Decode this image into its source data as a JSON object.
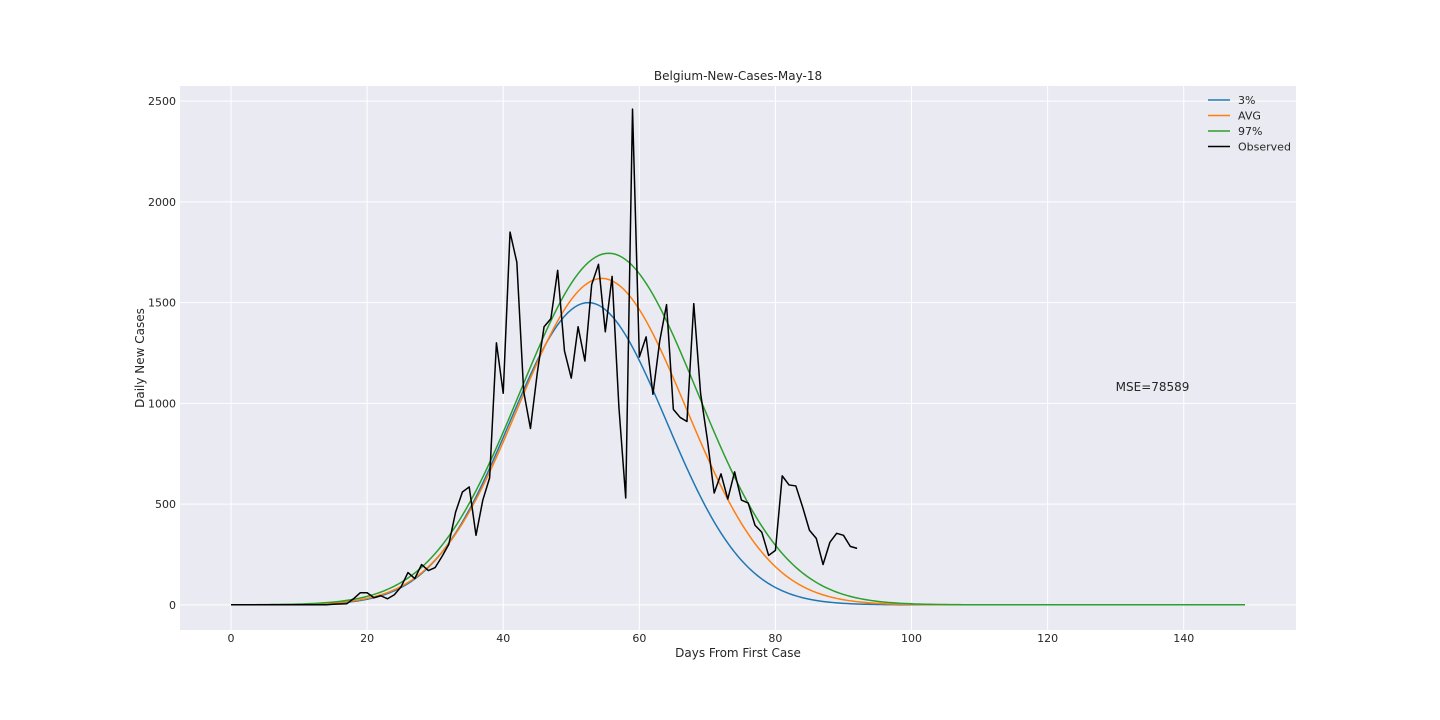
{
  "chart_data": {
    "type": "line",
    "title": "Belgium-New-Cases-May-18",
    "xlabel": "Days From First Case",
    "ylabel": "Daily New Cases",
    "xlim": [
      -7.5,
      156.5
    ],
    "ylim": [
      -125,
      2575
    ],
    "xticks": [
      0,
      20,
      40,
      60,
      80,
      100,
      120,
      140
    ],
    "yticks": [
      0,
      500,
      1000,
      1500,
      2000,
      2500
    ],
    "grid": true,
    "legend_position": "top-right",
    "annotation": "MSE=78589",
    "annotation_pos": [
      130,
      1060
    ],
    "curves": [
      {
        "name": "3%",
        "color": "#1f77b4",
        "peak": 1500,
        "mu": 52.5,
        "sigma": 11.5,
        "x_start": 0,
        "x_end": 149
      },
      {
        "name": "AVG",
        "color": "#ff7f0e",
        "peak": 1620,
        "mu": 54.5,
        "sigma": 12.3,
        "x_start": 0,
        "x_end": 149
      },
      {
        "name": "97%",
        "color": "#2ca02c",
        "peak": 1745,
        "mu": 55.5,
        "sigma": 13.0,
        "x_start": 0,
        "x_end": 149
      }
    ],
    "observed": {
      "name": "Observed",
      "color": "#000000",
      "x": [
        0,
        1,
        2,
        3,
        4,
        5,
        6,
        7,
        8,
        9,
        10,
        11,
        12,
        13,
        14,
        15,
        16,
        17,
        18,
        19,
        20,
        21,
        22,
        23,
        24,
        25,
        26,
        27,
        28,
        29,
        30,
        31,
        32,
        33,
        34,
        35,
        36,
        37,
        38,
        39,
        40,
        41,
        42,
        43,
        44,
        45,
        46,
        47,
        48,
        49,
        50,
        51,
        52,
        53,
        54,
        55,
        56,
        57,
        58,
        59,
        60,
        61,
        62,
        63,
        64,
        65,
        66,
        67,
        68,
        69,
        70,
        71,
        72,
        73,
        74,
        75,
        76,
        77,
        78,
        79,
        80,
        81,
        82,
        83,
        84,
        85,
        86,
        87,
        88,
        89,
        90,
        91,
        92
      ],
      "values": [
        0,
        0,
        0,
        0,
        0,
        0,
        0,
        0,
        0,
        0,
        0,
        0,
        0,
        0,
        0,
        3,
        4,
        5,
        30,
        60,
        60,
        35,
        45,
        30,
        50,
        90,
        160,
        130,
        200,
        170,
        185,
        240,
        300,
        460,
        560,
        585,
        345,
        520,
        630,
        1300,
        1050,
        1850,
        1700,
        1060,
        875,
        1150,
        1380,
        1420,
        1660,
        1260,
        1125,
        1380,
        1210,
        1590,
        1690,
        1355,
        1630,
        980,
        530,
        2460,
        1230,
        1330,
        1045,
        1310,
        1490,
        970,
        930,
        910,
        1495,
        1050,
        820,
        555,
        650,
        525,
        660,
        520,
        505,
        395,
        360,
        245,
        270,
        640,
        595,
        590,
        485,
        370,
        330,
        200,
        310,
        355,
        345,
        290,
        280
      ]
    }
  }
}
